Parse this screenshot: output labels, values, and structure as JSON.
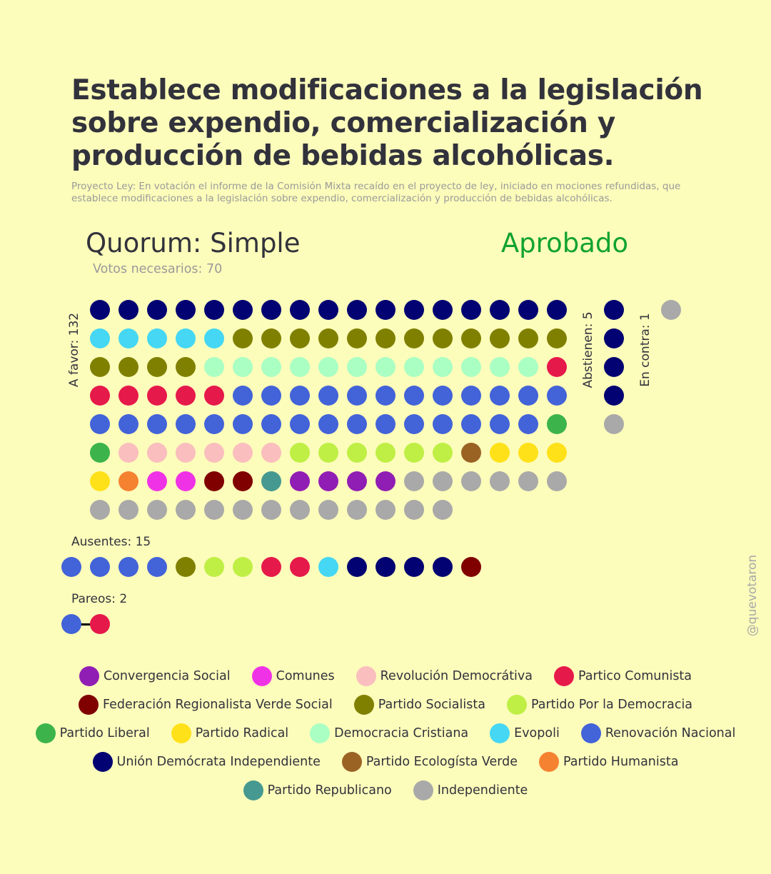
{
  "title": "Establece modificaciones a la legislación sobre expendio, comercialización y producción de bebidas alcohólicas.",
  "subtitle": "Proyecto Ley: En votación el informe de la Comisión Mixta recaído en el proyecto de ley, iniciado en mociones refundidas, que establece modificaciones a la legislación sobre expendio, comercialización y producción de bebidas alcohólicas.",
  "quorum": "Quorum: Simple",
  "result": "Aprobado",
  "votos_necesarios": "Votos necesarios: 70",
  "labels": {
    "a_favor": "A favor: 132",
    "abstienen": "Abstienen: 5",
    "en_contra": "En contra: 1",
    "ausentes": "Ausentes: 15",
    "pareos": "Pareos: 2"
  },
  "watermark": "@quevotaron",
  "parties": {
    "UDI": {
      "name": "Unión Demócrata Independiente",
      "color": "#020272"
    },
    "EVO": {
      "name": "Evopoli",
      "color": "#45d7f4"
    },
    "PS": {
      "name": "Partido Socialista",
      "color": "#808000"
    },
    "DC": {
      "name": "Democracia Cristiana",
      "color": "#aaffc3"
    },
    "PC": {
      "name": "Partico Comunista",
      "color": "#e6194b"
    },
    "RN": {
      "name": "Renovación Nacional",
      "color": "#4363d8"
    },
    "PL": {
      "name": "Partido Liberal",
      "color": "#3cb44b"
    },
    "RD": {
      "name": "Revolución Democrátiva",
      "color": "#fabebe"
    },
    "PPD": {
      "name": "Partido Por la Democracia",
      "color": "#bfef45"
    },
    "PEV": {
      "name": "Partido Ecologísta Verde",
      "color": "#9a6324"
    },
    "PR": {
      "name": "Partido Radical",
      "color": "#ffe119"
    },
    "PH": {
      "name": "Partido Humanista",
      "color": "#f58231"
    },
    "COM": {
      "name": "Comunes",
      "color": "#f032e6"
    },
    "FRVS": {
      "name": "Federación Regionalista Verde Social",
      "color": "#800000"
    },
    "REP": {
      "name": "Partido Republicano",
      "color": "#469990"
    },
    "CS": {
      "name": "Convergencia Social",
      "color": "#911eb4"
    },
    "IND": {
      "name": "Independiente",
      "color": "#a9a9a9"
    }
  },
  "chart_data": {
    "type": "parliament-dot",
    "title": "Establece modificaciones a la legislación sobre expendio, comercialización y producción de bebidas alcohólicas.",
    "groups": [
      {
        "label": "A favor: 132",
        "count": 132,
        "seats": [
          [
            "UDI",
            17
          ],
          [
            "EVO",
            5
          ],
          [
            "PS",
            16
          ],
          [
            "DC",
            12
          ],
          [
            "PC",
            6
          ],
          [
            "RN",
            28
          ],
          [
            "PL",
            2
          ],
          [
            "RD",
            6
          ],
          [
            "PPD",
            6
          ],
          [
            "PEV",
            1
          ],
          [
            "PR",
            4
          ],
          [
            "PH",
            1
          ],
          [
            "COM",
            2
          ],
          [
            "FRVS",
            2
          ],
          [
            "REP",
            1
          ],
          [
            "CS",
            4
          ],
          [
            "IND",
            19
          ]
        ]
      },
      {
        "label": "Abstienen: 5",
        "count": 5,
        "seats": [
          [
            "UDI",
            4
          ],
          [
            "IND",
            1
          ]
        ]
      },
      {
        "label": "En contra: 1",
        "count": 1,
        "seats": [
          [
            "IND",
            1
          ]
        ]
      },
      {
        "label": "Ausentes: 15",
        "count": 15,
        "seats": [
          [
            "RN",
            4
          ],
          [
            "PS",
            1
          ],
          [
            "PPD",
            2
          ],
          [
            "PC",
            2
          ],
          [
            "EVO",
            1
          ],
          [
            "UDI",
            4
          ],
          [
            "FRVS",
            1
          ]
        ]
      },
      {
        "label": "Pareos: 2",
        "count": 2,
        "seats": [
          [
            "RN",
            1
          ],
          [
            "PC",
            1
          ]
        ]
      }
    ]
  },
  "legend_rows": [
    [
      "CS",
      "COM",
      "RD",
      "PC"
    ],
    [
      "FRVS",
      "PS",
      "PPD"
    ],
    [
      "PL",
      "PR",
      "DC",
      "EVO",
      "RN"
    ],
    [
      "UDI",
      "PEV",
      "PH"
    ],
    [
      "REP",
      "IND"
    ]
  ]
}
